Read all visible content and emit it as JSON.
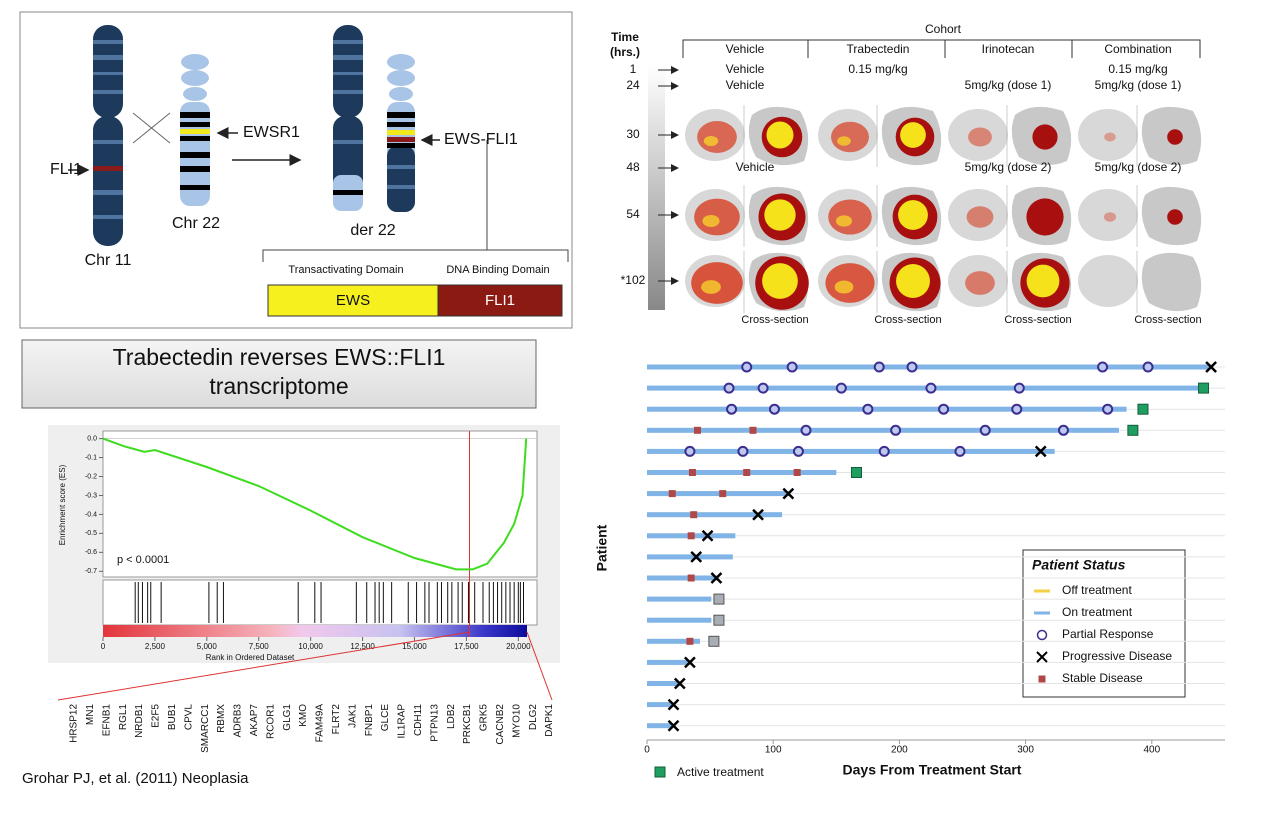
{
  "fusion_diagram": {
    "fli1": "FLI1",
    "chr11": "Chr 11",
    "chr22": "Chr 22",
    "ewsr1": "EWSR1",
    "der22": "der 22",
    "ews_fli1": "EWS-FLI1",
    "domain_titles": [
      "Transactivating Domain",
      "DNA Binding Domain"
    ],
    "domains": [
      "EWS",
      "FLI1"
    ]
  },
  "imaging": {
    "cohort_title": "Cohort",
    "time_title": [
      "Time",
      "(hrs.)"
    ],
    "columns": [
      "Vehicle",
      "Trabectedin",
      "Irinotecan",
      "Combination"
    ],
    "rows": [
      {
        "time": "1",
        "cells": [
          "Vehicle",
          "0.15 mg/kg",
          null,
          "0.15 mg/kg"
        ]
      },
      {
        "time": "24",
        "cells": [
          "Vehicle",
          null,
          "5mg/kg (dose 1)",
          "5mg/kg (dose 1)"
        ]
      },
      {
        "time": "30"
      },
      {
        "time": "48",
        "cells": [
          "Vehicle",
          null,
          "5mg/kg (dose 2)",
          "5mg/kg (dose 2)"
        ]
      },
      {
        "time": "54"
      },
      {
        "time": "*102"
      }
    ],
    "cross_section": [
      "Cross-section",
      "Cross-section",
      "Cross-section",
      "Cross-section"
    ]
  },
  "title_box": {
    "lines": [
      "Trabectedin reverses EWS::FLI1",
      "transcriptome"
    ]
  },
  "gsea": {
    "ylabel": "Enrichment score (ES)",
    "xlabel": "Rank in Ordered Dataset",
    "pvalue": "p < 0.0001",
    "xlim": [
      0,
      20900
    ],
    "ylim": [
      -0.73,
      0.04
    ],
    "xticks": [
      0,
      {
        "value": 2500,
        "label": "2,500"
      },
      {
        "value": 5000,
        "label": "5,000"
      },
      {
        "value": 7500,
        "label": "7,500"
      },
      {
        "value": 10000,
        "label": "10,000"
      },
      {
        "value": 12500,
        "label": "12,500"
      },
      {
        "value": 15000,
        "label": "15,000"
      },
      {
        "value": 17500,
        "label": "17,500"
      },
      {
        "value": 20000,
        "label": "20,000"
      }
    ],
    "yticks": [
      {
        "value": 0,
        "label": "0.0"
      },
      -0.1,
      -0.2,
      -0.3,
      -0.4,
      -0.5,
      -0.6,
      -0.7
    ],
    "x": [
      0,
      1000,
      2000,
      2500,
      5000,
      7500,
      10000,
      12500,
      15000,
      17000,
      17800,
      18500,
      19300,
      19800,
      20200,
      20380
    ],
    "es": [
      0,
      -0.04,
      -0.07,
      -0.06,
      -0.15,
      -0.25,
      -0.38,
      -0.52,
      -0.63,
      -0.69,
      -0.69,
      -0.66,
      -0.55,
      -0.45,
      -0.3,
      0
    ],
    "leading_edge": 17650,
    "hits": [
      1550,
      1700,
      1900,
      2150,
      2300,
      2800,
      5100,
      5500,
      5800,
      9400,
      10200,
      10500,
      12200,
      12700,
      13100,
      13300,
      13500,
      13900,
      14700,
      15100,
      15500,
      15700,
      16100,
      16300,
      16600,
      16800,
      17100,
      17300,
      17600,
      17900,
      18300,
      18600,
      18800,
      19000,
      19200,
      19400,
      19600,
      19800,
      20000,
      20100,
      20250
    ]
  },
  "genes": [
    "HRSP12",
    "MN1",
    "EFNB1",
    "RGL1",
    "NRDB1",
    "E2F5",
    "BUB1",
    "CPVL",
    "SMARCC1",
    "RBMX",
    "ADRB3",
    "AKAP7",
    "RCOR1",
    "GLG1",
    "KMO",
    "FAM49A",
    "FLRT2",
    "JAK1",
    "FNBP1",
    "GLCE",
    "IL1RAP",
    "CDH11",
    "PTPN13",
    "LDB2",
    "PRKCB1",
    "GRK5",
    "CACNB2",
    "MYO10",
    "DLG2",
    "DAPK1"
  ],
  "citation": "Grohar PJ, et al. (2011) Neoplasia",
  "swimmer": {
    "ylabel": "Patient",
    "xlabel": "Days From Treatment Start",
    "xlim": [
      0,
      458
    ],
    "xticks": [
      0,
      100,
      200,
      300,
      400
    ],
    "legend_title": "Patient Status",
    "legend": [
      "Off treatment",
      "On treatment",
      "Partial Response",
      "Progressive Disease",
      "Stable Disease"
    ],
    "active_label": "Active treatment",
    "patients": [
      {
        "days": 447,
        "pr": [
          79,
          115,
          184,
          210,
          361,
          397
        ],
        "pd": [
          447
        ]
      },
      {
        "days": 438,
        "pr": [
          65,
          92,
          154,
          225,
          295
        ],
        "active": [
          441
        ]
      },
      {
        "days": 380,
        "pr": [
          67,
          101,
          175,
          235,
          293,
          365
        ],
        "active": [
          393
        ]
      },
      {
        "days": 374,
        "sd": [
          40,
          84
        ],
        "pr": [
          126,
          197,
          268,
          330
        ],
        "active": [
          385
        ]
      },
      {
        "days": 323,
        "pr": [
          34,
          76,
          120,
          188,
          248
        ],
        "pd": [
          312
        ]
      },
      {
        "days": 150,
        "sd": [
          36,
          79,
          119
        ],
        "active": [
          166
        ]
      },
      {
        "days": 113,
        "sd": [
          20,
          60
        ],
        "pd": [
          112
        ]
      },
      {
        "days": 107,
        "sd": [
          37
        ],
        "pd": [
          88
        ]
      },
      {
        "days": 70,
        "sd": [
          35
        ],
        "pd": [
          48
        ]
      },
      {
        "days": 68,
        "pd": [
          39
        ]
      },
      {
        "days": 56,
        "sd": [
          35
        ],
        "pd": [
          55
        ]
      },
      {
        "days": 51,
        "gray": [
          57
        ]
      },
      {
        "days": 51,
        "gray": [
          57
        ]
      },
      {
        "days": 42,
        "sd": [
          34
        ],
        "gray": [
          53
        ]
      },
      {
        "days": 34,
        "pd": [
          34
        ]
      },
      {
        "days": 26,
        "pd": [
          26
        ]
      },
      {
        "days": 20,
        "pd": [
          21
        ]
      },
      {
        "days": 20,
        "pd": [
          21
        ]
      }
    ]
  }
}
